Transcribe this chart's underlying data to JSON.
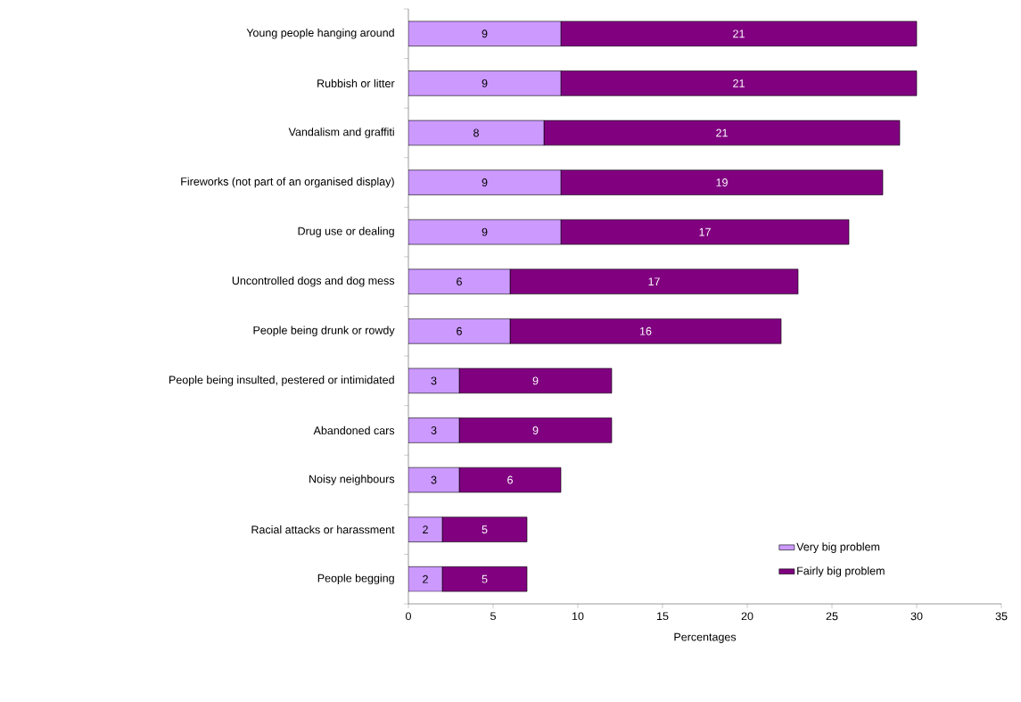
{
  "chart_data": {
    "type": "bar",
    "orientation": "horizontal",
    "stacked": true,
    "xlabel": "Percentages",
    "categories": [
      "Young people hanging around",
      "Rubbish or litter",
      "Vandalism and graffiti",
      "Fireworks (not part of an organised display)",
      "Drug use or dealing",
      "Uncontrolled dogs and dog mess",
      "People being drunk or rowdy",
      "People being insulted, pestered or intimidated",
      "Abandoned cars",
      "Noisy neighbours",
      "Racial attacks or harassment",
      "People begging"
    ],
    "series": [
      {
        "name": "Very big problem",
        "color": "#cc99ff",
        "values": [
          9,
          9,
          8,
          9,
          9,
          6,
          6,
          3,
          3,
          3,
          2,
          2
        ]
      },
      {
        "name": "Fairly big problem",
        "color": "#800080",
        "values": [
          21,
          21,
          21,
          19,
          17,
          17,
          16,
          9,
          9,
          6,
          5,
          5
        ]
      }
    ],
    "xlim": [
      0,
      35
    ],
    "xticks": [
      0,
      5,
      10,
      15,
      20,
      25,
      30,
      35
    ],
    "data_labels": true,
    "legend": "bottom right"
  }
}
